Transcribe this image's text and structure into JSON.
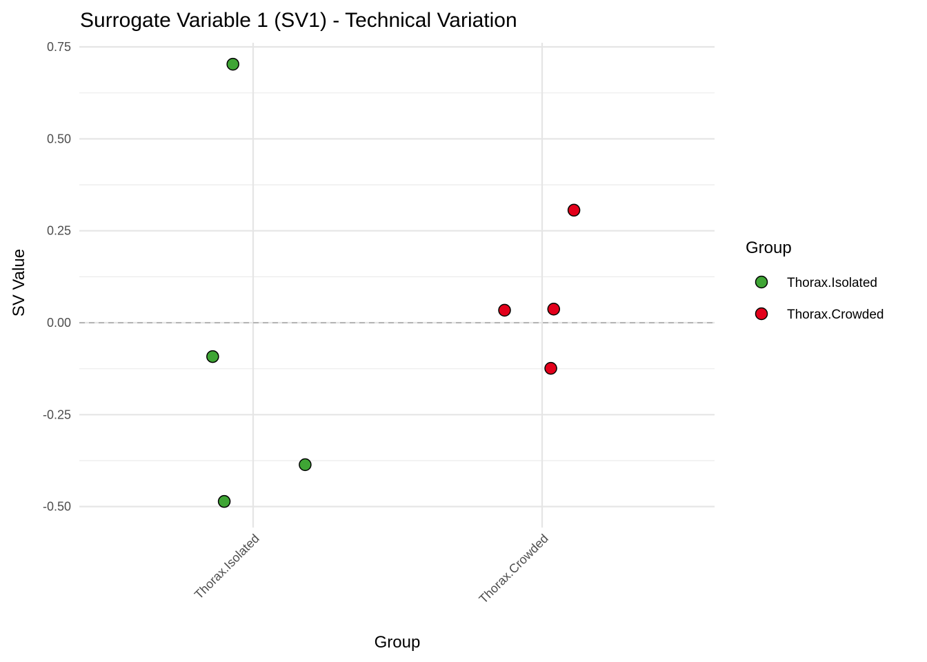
{
  "chart_data": {
    "type": "scatter",
    "title": "Surrogate Variable 1 (SV1) - Technical Variation",
    "xlabel": "Group",
    "ylabel": "SV Value",
    "categories": [
      "Thorax.Isolated",
      "Thorax.Crowded"
    ],
    "ylim": [
      -0.55,
      0.77
    ],
    "yticks": [
      -0.5,
      -0.25,
      0.0,
      0.25,
      0.5,
      0.75
    ],
    "ytick_labels": [
      "-0.50",
      "-0.25",
      "0.00",
      "0.25",
      "0.50",
      "0.75"
    ],
    "grid": true,
    "reference_line": {
      "y": 0,
      "style": "dashed"
    },
    "legend": {
      "title": "Group",
      "placement": "right"
    },
    "series": [
      {
        "name": "Thorax.Isolated",
        "color": "#3FA535",
        "points": [
          {
            "category": "Thorax.Isolated",
            "jitter": -0.07,
            "y": 0.703
          },
          {
            "category": "Thorax.Isolated",
            "jitter": -0.14,
            "y": -0.092
          },
          {
            "category": "Thorax.Isolated",
            "jitter": 0.18,
            "y": -0.386
          },
          {
            "category": "Thorax.Isolated",
            "jitter": -0.1,
            "y": -0.486
          }
        ]
      },
      {
        "name": "Thorax.Crowded",
        "color": "#E3001B",
        "points": [
          {
            "category": "Thorax.Crowded",
            "jitter": 0.11,
            "y": 0.306
          },
          {
            "category": "Thorax.Crowded",
            "jitter": -0.13,
            "y": 0.034
          },
          {
            "category": "Thorax.Crowded",
            "jitter": 0.04,
            "y": 0.037
          },
          {
            "category": "Thorax.Crowded",
            "jitter": 0.03,
            "y": -0.124
          }
        ]
      }
    ]
  }
}
